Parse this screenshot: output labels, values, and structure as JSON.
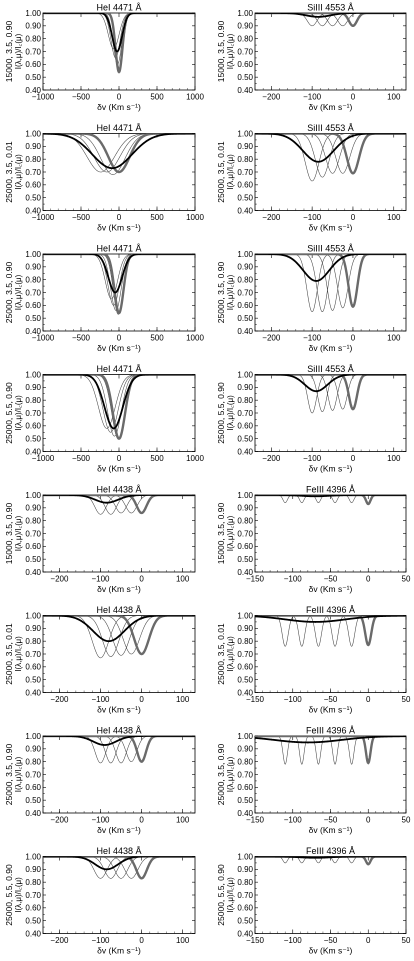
{
  "figure": {
    "xlabel": "δv (Km s⁻¹)",
    "ylabel_suffix": "I(λ,μ)/I꜀(μ)"
  },
  "chart_data": [
    {
      "type": "line",
      "title": "HeI 4471 Å",
      "row_label": "15000, 3.5, 0.90",
      "xlim": [
        -1000,
        1000
      ],
      "xticks": [
        -1000,
        -500,
        0,
        500,
        1000
      ],
      "ylim": [
        0.4,
        1.0
      ],
      "yticks": [
        0.4,
        0.5,
        0.6,
        0.7,
        0.8,
        0.9,
        1.0
      ],
      "wide": true,
      "thin": [
        {
          "center": -70,
          "depth": 0.28,
          "width": 70
        },
        {
          "center": -45,
          "depth": 0.35,
          "width": 60
        },
        {
          "center": -20,
          "depth": 0.4,
          "width": 55
        },
        {
          "center": 5,
          "depth": 0.43,
          "width": 50
        }
      ],
      "thick": {
        "center": -25,
        "depth": 0.3,
        "width": 65
      },
      "ref": {
        "center": 0,
        "depth": 0.46,
        "width": 45
      }
    },
    {
      "type": "line",
      "title": "SiIII 4553 Å",
      "row_label": "15000, 3.5, 0.90",
      "xlim": [
        -240,
        130
      ],
      "xticks": [
        -200,
        -100,
        0,
        100
      ],
      "ylim": [
        0.4,
        1.0
      ],
      "yticks": [
        0.4,
        0.5,
        0.6,
        0.7,
        0.8,
        0.9,
        1.0
      ],
      "thin": [
        {
          "center": -100,
          "depth": 0.1,
          "width": 12
        },
        {
          "center": -75,
          "depth": 0.1,
          "width": 12
        },
        {
          "center": -50,
          "depth": 0.1,
          "width": 12
        },
        {
          "center": -25,
          "depth": 0.1,
          "width": 12
        }
      ],
      "thick": {
        "center": -85,
        "depth": 0.03,
        "width": 30
      },
      "ref": {
        "center": 0,
        "depth": 0.1,
        "width": 10
      }
    },
    {
      "type": "line",
      "title": "HeI 4471 Å",
      "row_label": "25000, 3.5, 0.01",
      "xlim": [
        -1000,
        1000
      ],
      "xticks": [
        -1000,
        -500,
        0,
        500,
        1000
      ],
      "ylim": [
        0.4,
        1.0
      ],
      "yticks": [
        0.4,
        0.5,
        0.6,
        0.7,
        0.8,
        0.9,
        1.0
      ],
      "wide": true,
      "thin": [
        {
          "center": -240,
          "depth": 0.3,
          "width": 180
        },
        {
          "center": -160,
          "depth": 0.3,
          "width": 170
        },
        {
          "center": -80,
          "depth": 0.32,
          "width": 160
        }
      ],
      "thick": {
        "center": -90,
        "depth": 0.27,
        "width": 260
      },
      "ref": {
        "center": 0,
        "depth": 0.3,
        "width": 140
      }
    },
    {
      "type": "line",
      "title": "SiIII 4553 Å",
      "row_label": "25000, 3.5, 0.01",
      "xlim": [
        -240,
        130
      ],
      "xticks": [
        -200,
        -100,
        0,
        100
      ],
      "ylim": [
        0.4,
        1.0
      ],
      "yticks": [
        0.4,
        0.5,
        0.6,
        0.7,
        0.8,
        0.9,
        1.0
      ],
      "thin": [
        {
          "center": -100,
          "depth": 0.37,
          "width": 17
        },
        {
          "center": -75,
          "depth": 0.34,
          "width": 17
        },
        {
          "center": -50,
          "depth": 0.31,
          "width": 17
        },
        {
          "center": -25,
          "depth": 0.31,
          "width": 17
        }
      ],
      "thick": {
        "center": -85,
        "depth": 0.22,
        "width": 38
      },
      "ref": {
        "center": 0,
        "depth": 0.31,
        "width": 15
      }
    },
    {
      "type": "line",
      "title": "HeI 4471 Å",
      "row_label": "25000, 3.5, 0.90",
      "xlim": [
        -1000,
        1000
      ],
      "xticks": [
        -1000,
        -500,
        0,
        500,
        1000
      ],
      "ylim": [
        0.4,
        1.0
      ],
      "yticks": [
        0.4,
        0.5,
        0.6,
        0.7,
        0.8,
        0.9,
        1.0
      ],
      "wide": true,
      "thin": [
        {
          "center": -100,
          "depth": 0.35,
          "width": 80
        },
        {
          "center": -70,
          "depth": 0.4,
          "width": 75
        },
        {
          "center": -40,
          "depth": 0.44,
          "width": 70
        },
        {
          "center": -10,
          "depth": 0.47,
          "width": 65
        }
      ],
      "thick": {
        "center": -50,
        "depth": 0.3,
        "width": 90
      },
      "ref": {
        "center": 0,
        "depth": 0.46,
        "width": 60
      }
    },
    {
      "type": "line",
      "title": "SiIII 4553 Å",
      "row_label": "25000, 3.5, 0.90",
      "xlim": [
        -240,
        130
      ],
      "xticks": [
        -200,
        -100,
        0,
        100
      ],
      "ylim": [
        0.4,
        1.0
      ],
      "yticks": [
        0.4,
        0.5,
        0.6,
        0.7,
        0.8,
        0.9,
        1.0
      ],
      "thin": [
        {
          "center": -100,
          "depth": 0.45,
          "width": 13
        },
        {
          "center": -75,
          "depth": 0.45,
          "width": 13
        },
        {
          "center": -50,
          "depth": 0.44,
          "width": 13
        },
        {
          "center": -25,
          "depth": 0.42,
          "width": 13
        }
      ],
      "thick": {
        "center": -90,
        "depth": 0.21,
        "width": 32
      },
      "ref": {
        "center": 0,
        "depth": 0.41,
        "width": 11
      }
    },
    {
      "type": "line",
      "title": "HeI 4471 Å",
      "row_label": "25000, 5.5, 0.90",
      "xlim": [
        -1000,
        1000
      ],
      "xticks": [
        -1000,
        -500,
        0,
        500,
        1000
      ],
      "ylim": [
        0.4,
        1.0
      ],
      "yticks": [
        0.4,
        0.5,
        0.6,
        0.7,
        0.8,
        0.9,
        1.0
      ],
      "wide": true,
      "thin": [
        {
          "center": -160,
          "depth": 0.42,
          "width": 110
        },
        {
          "center": -110,
          "depth": 0.45,
          "width": 100
        },
        {
          "center": -60,
          "depth": 0.48,
          "width": 90
        },
        {
          "center": -10,
          "depth": 0.5,
          "width": 85
        }
      ],
      "thick": {
        "center": -70,
        "depth": 0.42,
        "width": 120
      },
      "ref": {
        "center": 0,
        "depth": 0.5,
        "width": 80
      }
    },
    {
      "type": "line",
      "title": "SiIII 4553 Å",
      "row_label": "25000, 5.5, 0.90",
      "xlim": [
        -240,
        130
      ],
      "xticks": [
        -200,
        -100,
        0,
        100
      ],
      "ylim": [
        0.4,
        1.0
      ],
      "yticks": [
        0.4,
        0.5,
        0.6,
        0.7,
        0.8,
        0.9,
        1.0
      ],
      "thin": [
        {
          "center": -100,
          "depth": 0.3,
          "width": 11
        },
        {
          "center": -75,
          "depth": 0.29,
          "width": 11
        },
        {
          "center": -50,
          "depth": 0.28,
          "width": 11
        },
        {
          "center": -25,
          "depth": 0.27,
          "width": 11
        }
      ],
      "thick": {
        "center": -90,
        "depth": 0.13,
        "width": 28
      },
      "ref": {
        "center": 0,
        "depth": 0.27,
        "width": 10
      }
    },
    {
      "type": "line",
      "title": "HeI 4438 Å",
      "row_label": "15000, 3.5, 0.90",
      "xlim": [
        -240,
        130
      ],
      "xticks": [
        -200,
        -100,
        0,
        100
      ],
      "ylim": [
        0.4,
        1.0
      ],
      "yticks": [
        0.4,
        0.5,
        0.6,
        0.7,
        0.8,
        0.9,
        1.0
      ],
      "thin": [
        {
          "center": -100,
          "depth": 0.15,
          "width": 14
        },
        {
          "center": -75,
          "depth": 0.15,
          "width": 14
        },
        {
          "center": -50,
          "depth": 0.14,
          "width": 14
        },
        {
          "center": -25,
          "depth": 0.14,
          "width": 14
        }
      ],
      "thick": {
        "center": -85,
        "depth": 0.06,
        "width": 28
      },
      "ref": {
        "center": 0,
        "depth": 0.14,
        "width": 12
      }
    },
    {
      "type": "line",
      "title": "FeIII 4396 Å",
      "row_label": "15000, 3.5, 0.90",
      "xlim": [
        -150,
        50
      ],
      "xticks": [
        -150,
        -100,
        -50,
        0,
        50
      ],
      "ylim": [
        0.4,
        1.0
      ],
      "yticks": [
        0.4,
        0.5,
        0.6,
        0.7,
        0.8,
        0.9,
        1.0
      ],
      "thin": [
        {
          "center": -110,
          "depth": 0.06,
          "width": 3
        },
        {
          "center": -88,
          "depth": 0.06,
          "width": 3
        },
        {
          "center": -66,
          "depth": 0.06,
          "width": 3
        },
        {
          "center": -44,
          "depth": 0.06,
          "width": 3
        },
        {
          "center": -22,
          "depth": 0.06,
          "width": 3
        }
      ],
      "thick": {
        "center": -70,
        "depth": 0.01,
        "width": 18
      },
      "ref": {
        "center": 0,
        "depth": 0.07,
        "width": 3
      }
    },
    {
      "type": "line",
      "title": "HeI 4438 Å",
      "row_label": "25000, 3.5, 0.01",
      "xlim": [
        -240,
        130
      ],
      "xticks": [
        -200,
        -100,
        0,
        100
      ],
      "ylim": [
        0.4,
        1.0
      ],
      "yticks": [
        0.4,
        0.5,
        0.6,
        0.7,
        0.8,
        0.9,
        1.0
      ],
      "thin": [
        {
          "center": -100,
          "depth": 0.33,
          "width": 20
        },
        {
          "center": -75,
          "depth": 0.32,
          "width": 20
        },
        {
          "center": -50,
          "depth": 0.31,
          "width": 20
        },
        {
          "center": -25,
          "depth": 0.3,
          "width": 20
        }
      ],
      "thick": {
        "center": -80,
        "depth": 0.2,
        "width": 38
      },
      "ref": {
        "center": 0,
        "depth": 0.3,
        "width": 18
      }
    },
    {
      "type": "line",
      "title": "FeIII 4396 Å",
      "row_label": "25000, 3.5, 0.01",
      "xlim": [
        -150,
        50
      ],
      "xticks": [
        -150,
        -100,
        -50,
        0,
        50
      ],
      "ylim": [
        0.4,
        1.0
      ],
      "yticks": [
        0.4,
        0.5,
        0.6,
        0.7,
        0.8,
        0.9,
        1.0
      ],
      "thin": [
        {
          "center": -110,
          "depth": 0.24,
          "width": 4
        },
        {
          "center": -88,
          "depth": 0.24,
          "width": 4
        },
        {
          "center": -66,
          "depth": 0.24,
          "width": 4
        },
        {
          "center": -44,
          "depth": 0.24,
          "width": 4
        },
        {
          "center": -22,
          "depth": 0.24,
          "width": 4
        }
      ],
      "thick": {
        "center": -70,
        "depth": 0.05,
        "width": 40
      },
      "ref": {
        "center": 0,
        "depth": 0.23,
        "width": 4
      }
    },
    {
      "type": "line",
      "title": "HeI 4438 Å",
      "row_label": "25000, 3.5, 0.90",
      "xlim": [
        -240,
        130
      ],
      "xticks": [
        -200,
        -100,
        0,
        100
      ],
      "ylim": [
        0.4,
        1.0
      ],
      "yticks": [
        0.4,
        0.5,
        0.6,
        0.7,
        0.8,
        0.9,
        1.0
      ],
      "thin": [
        {
          "center": -100,
          "depth": 0.21,
          "width": 13
        },
        {
          "center": -75,
          "depth": 0.21,
          "width": 13
        },
        {
          "center": -50,
          "depth": 0.21,
          "width": 13
        },
        {
          "center": -25,
          "depth": 0.2,
          "width": 13
        }
      ],
      "thick": {
        "center": -90,
        "depth": 0.07,
        "width": 28
      },
      "ref": {
        "center": 0,
        "depth": 0.2,
        "width": 11
      }
    },
    {
      "type": "line",
      "title": "FeIII 4396 Å",
      "row_label": "25000, 3.5, 0.90",
      "xlim": [
        -150,
        50
      ],
      "xticks": [
        -150,
        -100,
        -50,
        0,
        50
      ],
      "ylim": [
        0.4,
        1.0
      ],
      "yticks": [
        0.4,
        0.5,
        0.6,
        0.7,
        0.8,
        0.9,
        1.0
      ],
      "thin": [
        {
          "center": -110,
          "depth": 0.22,
          "width": 3
        },
        {
          "center": -88,
          "depth": 0.22,
          "width": 3
        },
        {
          "center": -66,
          "depth": 0.22,
          "width": 3
        },
        {
          "center": -44,
          "depth": 0.22,
          "width": 3
        },
        {
          "center": -22,
          "depth": 0.22,
          "width": 3
        }
      ],
      "thick": {
        "center": -80,
        "depth": 0.05,
        "width": 45
      },
      "ref": {
        "center": 0,
        "depth": 0.21,
        "width": 3
      }
    },
    {
      "type": "line",
      "title": "HeI 4438 Å",
      "row_label": "25000, 5.5, 0.90",
      "xlim": [
        -240,
        130
      ],
      "xticks": [
        -200,
        -100,
        0,
        100
      ],
      "ylim": [
        0.4,
        1.0
      ],
      "yticks": [
        0.4,
        0.5,
        0.6,
        0.7,
        0.8,
        0.9,
        1.0
      ],
      "thin": [
        {
          "center": -100,
          "depth": 0.17,
          "width": 16
        },
        {
          "center": -75,
          "depth": 0.17,
          "width": 16
        },
        {
          "center": -50,
          "depth": 0.17,
          "width": 16
        },
        {
          "center": -25,
          "depth": 0.17,
          "width": 16
        }
      ],
      "thick": {
        "center": -85,
        "depth": 0.1,
        "width": 28
      },
      "ref": {
        "center": 0,
        "depth": 0.17,
        "width": 13
      }
    },
    {
      "type": "line",
      "title": "FeIII 4396 Å",
      "row_label": "25000, 5.5, 0.90",
      "xlim": [
        -150,
        50
      ],
      "xticks": [
        -150,
        -100,
        -50,
        0,
        50
      ],
      "ylim": [
        0.4,
        1.0
      ],
      "yticks": [
        0.4,
        0.5,
        0.6,
        0.7,
        0.8,
        0.9,
        1.0
      ],
      "thin": [
        {
          "center": -110,
          "depth": 0.05,
          "width": 3
        },
        {
          "center": -88,
          "depth": 0.05,
          "width": 3
        },
        {
          "center": -66,
          "depth": 0.05,
          "width": 3
        },
        {
          "center": -44,
          "depth": 0.05,
          "width": 3
        },
        {
          "center": -22,
          "depth": 0.05,
          "width": 3
        }
      ],
      "thick": {
        "center": -70,
        "depth": 0.01,
        "width": 20
      },
      "ref": {
        "center": 0,
        "depth": 0.06,
        "width": 3
      }
    }
  ]
}
